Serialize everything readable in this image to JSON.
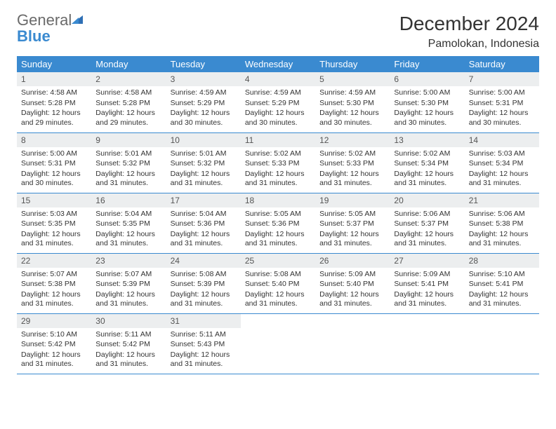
{
  "logo": {
    "general": "General",
    "blue": "Blue"
  },
  "title": "December 2024",
  "location": "Pamolokan, Indonesia",
  "colors": {
    "header_bg": "#3a8ad0",
    "header_text": "#ffffff",
    "daynum_bg": "#eceeef",
    "border": "#3a8ad0",
    "logo_gray": "#6a6a6a",
    "logo_blue": "#3a8ad0",
    "body_text": "#333333"
  },
  "weekdays": [
    "Sunday",
    "Monday",
    "Tuesday",
    "Wednesday",
    "Thursday",
    "Friday",
    "Saturday"
  ],
  "weeks": [
    [
      {
        "n": "1",
        "sr": "Sunrise: 4:58 AM",
        "ss": "Sunset: 5:28 PM",
        "dl": "Daylight: 12 hours and 29 minutes."
      },
      {
        "n": "2",
        "sr": "Sunrise: 4:58 AM",
        "ss": "Sunset: 5:28 PM",
        "dl": "Daylight: 12 hours and 29 minutes."
      },
      {
        "n": "3",
        "sr": "Sunrise: 4:59 AM",
        "ss": "Sunset: 5:29 PM",
        "dl": "Daylight: 12 hours and 30 minutes."
      },
      {
        "n": "4",
        "sr": "Sunrise: 4:59 AM",
        "ss": "Sunset: 5:29 PM",
        "dl": "Daylight: 12 hours and 30 minutes."
      },
      {
        "n": "5",
        "sr": "Sunrise: 4:59 AM",
        "ss": "Sunset: 5:30 PM",
        "dl": "Daylight: 12 hours and 30 minutes."
      },
      {
        "n": "6",
        "sr": "Sunrise: 5:00 AM",
        "ss": "Sunset: 5:30 PM",
        "dl": "Daylight: 12 hours and 30 minutes."
      },
      {
        "n": "7",
        "sr": "Sunrise: 5:00 AM",
        "ss": "Sunset: 5:31 PM",
        "dl": "Daylight: 12 hours and 30 minutes."
      }
    ],
    [
      {
        "n": "8",
        "sr": "Sunrise: 5:00 AM",
        "ss": "Sunset: 5:31 PM",
        "dl": "Daylight: 12 hours and 30 minutes."
      },
      {
        "n": "9",
        "sr": "Sunrise: 5:01 AM",
        "ss": "Sunset: 5:32 PM",
        "dl": "Daylight: 12 hours and 31 minutes."
      },
      {
        "n": "10",
        "sr": "Sunrise: 5:01 AM",
        "ss": "Sunset: 5:32 PM",
        "dl": "Daylight: 12 hours and 31 minutes."
      },
      {
        "n": "11",
        "sr": "Sunrise: 5:02 AM",
        "ss": "Sunset: 5:33 PM",
        "dl": "Daylight: 12 hours and 31 minutes."
      },
      {
        "n": "12",
        "sr": "Sunrise: 5:02 AM",
        "ss": "Sunset: 5:33 PM",
        "dl": "Daylight: 12 hours and 31 minutes."
      },
      {
        "n": "13",
        "sr": "Sunrise: 5:02 AM",
        "ss": "Sunset: 5:34 PM",
        "dl": "Daylight: 12 hours and 31 minutes."
      },
      {
        "n": "14",
        "sr": "Sunrise: 5:03 AM",
        "ss": "Sunset: 5:34 PM",
        "dl": "Daylight: 12 hours and 31 minutes."
      }
    ],
    [
      {
        "n": "15",
        "sr": "Sunrise: 5:03 AM",
        "ss": "Sunset: 5:35 PM",
        "dl": "Daylight: 12 hours and 31 minutes."
      },
      {
        "n": "16",
        "sr": "Sunrise: 5:04 AM",
        "ss": "Sunset: 5:35 PM",
        "dl": "Daylight: 12 hours and 31 minutes."
      },
      {
        "n": "17",
        "sr": "Sunrise: 5:04 AM",
        "ss": "Sunset: 5:36 PM",
        "dl": "Daylight: 12 hours and 31 minutes."
      },
      {
        "n": "18",
        "sr": "Sunrise: 5:05 AM",
        "ss": "Sunset: 5:36 PM",
        "dl": "Daylight: 12 hours and 31 minutes."
      },
      {
        "n": "19",
        "sr": "Sunrise: 5:05 AM",
        "ss": "Sunset: 5:37 PM",
        "dl": "Daylight: 12 hours and 31 minutes."
      },
      {
        "n": "20",
        "sr": "Sunrise: 5:06 AM",
        "ss": "Sunset: 5:37 PM",
        "dl": "Daylight: 12 hours and 31 minutes."
      },
      {
        "n": "21",
        "sr": "Sunrise: 5:06 AM",
        "ss": "Sunset: 5:38 PM",
        "dl": "Daylight: 12 hours and 31 minutes."
      }
    ],
    [
      {
        "n": "22",
        "sr": "Sunrise: 5:07 AM",
        "ss": "Sunset: 5:38 PM",
        "dl": "Daylight: 12 hours and 31 minutes."
      },
      {
        "n": "23",
        "sr": "Sunrise: 5:07 AM",
        "ss": "Sunset: 5:39 PM",
        "dl": "Daylight: 12 hours and 31 minutes."
      },
      {
        "n": "24",
        "sr": "Sunrise: 5:08 AM",
        "ss": "Sunset: 5:39 PM",
        "dl": "Daylight: 12 hours and 31 minutes."
      },
      {
        "n": "25",
        "sr": "Sunrise: 5:08 AM",
        "ss": "Sunset: 5:40 PM",
        "dl": "Daylight: 12 hours and 31 minutes."
      },
      {
        "n": "26",
        "sr": "Sunrise: 5:09 AM",
        "ss": "Sunset: 5:40 PM",
        "dl": "Daylight: 12 hours and 31 minutes."
      },
      {
        "n": "27",
        "sr": "Sunrise: 5:09 AM",
        "ss": "Sunset: 5:41 PM",
        "dl": "Daylight: 12 hours and 31 minutes."
      },
      {
        "n": "28",
        "sr": "Sunrise: 5:10 AM",
        "ss": "Sunset: 5:41 PM",
        "dl": "Daylight: 12 hours and 31 minutes."
      }
    ],
    [
      {
        "n": "29",
        "sr": "Sunrise: 5:10 AM",
        "ss": "Sunset: 5:42 PM",
        "dl": "Daylight: 12 hours and 31 minutes."
      },
      {
        "n": "30",
        "sr": "Sunrise: 5:11 AM",
        "ss": "Sunset: 5:42 PM",
        "dl": "Daylight: 12 hours and 31 minutes."
      },
      {
        "n": "31",
        "sr": "Sunrise: 5:11 AM",
        "ss": "Sunset: 5:43 PM",
        "dl": "Daylight: 12 hours and 31 minutes."
      },
      null,
      null,
      null,
      null
    ]
  ]
}
